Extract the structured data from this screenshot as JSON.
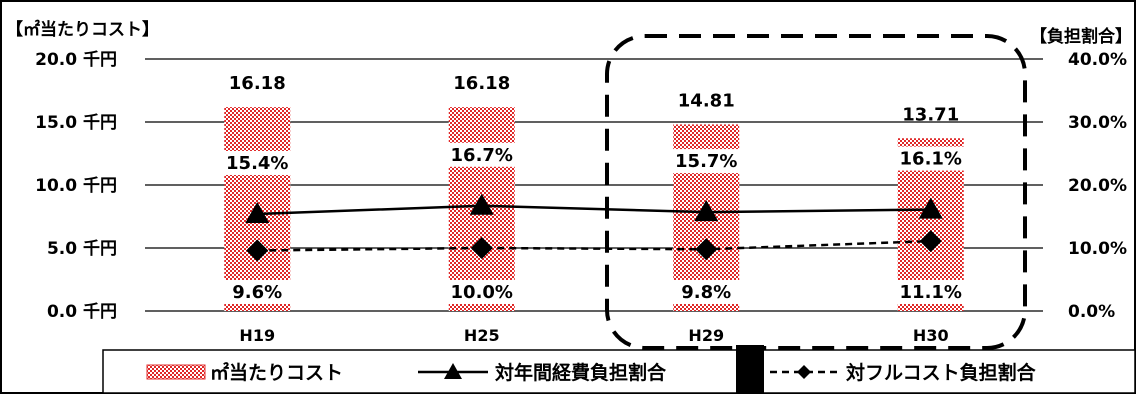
{
  "chart_data": {
    "type": "bar",
    "title_left": "【㎡当たりコスト】",
    "title_right": "【負担割合】",
    "categories": [
      "H19",
      "H25",
      "H29",
      "H30"
    ],
    "y_left": {
      "ticks": [
        "0.0 千円",
        "5.0 千円",
        "10.0 千円",
        "15.0 千円",
        "20.0 千円"
      ],
      "lim": [
        0,
        20
      ]
    },
    "y_right": {
      "ticks": [
        "0.0%",
        "10.0%",
        "20.0%",
        "30.0%",
        "40.0%"
      ],
      "lim": [
        0,
        40
      ]
    },
    "grid": true,
    "series": [
      {
        "name": "㎡当たりコスト",
        "kind": "bar",
        "axis": "left",
        "values": [
          16.18,
          16.18,
          14.81,
          13.71
        ],
        "labels": [
          "16.18",
          "16.18",
          "14.81",
          "13.71"
        ],
        "color": "#e03030"
      },
      {
        "name": "対年間経費負担割合",
        "kind": "line",
        "axis": "right",
        "marker": "triangle",
        "values": [
          15.4,
          16.7,
          15.7,
          16.1
        ],
        "labels": [
          "15.4%",
          "16.7%",
          "15.7%",
          "16.1%"
        ],
        "color": "#000000"
      },
      {
        "name": "対フルコスト負担割合",
        "kind": "line",
        "axis": "right",
        "marker": "diamond",
        "dash": true,
        "values": [
          9.6,
          10.0,
          9.8,
          11.1
        ],
        "labels": [
          "9.6%",
          "10.0%",
          "9.8%",
          "11.1%"
        ],
        "color": "#000000"
      }
    ],
    "legend_position": "bottom",
    "highlight": [
      "H29",
      "H30"
    ]
  }
}
